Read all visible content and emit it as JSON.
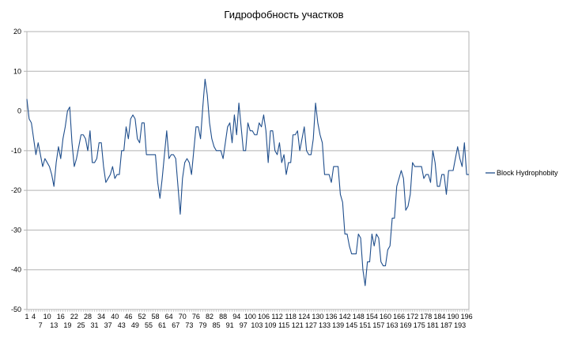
{
  "colors": {
    "series": "#1f4e8c",
    "grid": "#b3b3b3",
    "axis": "#b3b3b3",
    "background": "#ffffff"
  },
  "chart_data": {
    "type": "line",
    "title": "Гидрофобность участков",
    "xlabel": "",
    "ylabel": "",
    "ylim": [
      -50,
      20
    ],
    "yticks": [
      20,
      10,
      0,
      -10,
      -20,
      -30,
      -40,
      -50
    ],
    "xlim": [
      1,
      197
    ],
    "x_tick_labels_row1": [
      "1",
      "4",
      "10",
      "16",
      "22",
      "28",
      "34",
      "40",
      "46",
      "52",
      "58",
      "64",
      "70",
      "76",
      "82",
      "88",
      "94",
      "100",
      "106",
      "112",
      "118",
      "124",
      "130",
      "136",
      "142",
      "148",
      "154",
      "160",
      "166",
      "172",
      "178",
      "184",
      "190",
      "196"
    ],
    "x_tick_labels_row2": [
      "7",
      "13",
      "19",
      "25",
      "31",
      "37",
      "43",
      "49",
      "55",
      "61",
      "67",
      "73",
      "79",
      "85",
      "91",
      "97",
      "103",
      "109",
      "115",
      "121",
      "127",
      "133",
      "139",
      "145",
      "151",
      "157",
      "163",
      "169",
      "175",
      "181",
      "187",
      "193"
    ],
    "grid": "horizontal",
    "legend": "right",
    "series": [
      {
        "name": "Block Hydrophobity",
        "values": [
          3,
          -2,
          -3,
          -7,
          -11,
          -8,
          -11,
          -14,
          -12,
          -13,
          -14,
          -16,
          -19,
          -13,
          -9,
          -12,
          -7,
          -4,
          0,
          1,
          -8,
          -14,
          -12,
          -9,
          -6,
          -6,
          -7,
          -10,
          -5,
          -13,
          -13,
          -12,
          -8,
          -8,
          -14,
          -18,
          -17,
          -16,
          -14,
          -17,
          -16,
          -16,
          -10,
          -10,
          -4,
          -7,
          -2,
          -1,
          -2,
          -7,
          -8,
          -3,
          -3,
          -11,
          -11,
          -11,
          -11,
          -11,
          -18,
          -22,
          -17,
          -11,
          -5,
          -12,
          -11,
          -11,
          -12,
          -19,
          -26,
          -17,
          -13,
          -12,
          -13,
          -16,
          -10,
          -4,
          -4,
          -7,
          1,
          8,
          4,
          -3,
          -7,
          -9,
          -10,
          -10,
          -10,
          -12,
          -8,
          -4,
          -3,
          -8,
          -1,
          -6,
          2,
          -4,
          -10,
          -10,
          -3,
          -5,
          -5,
          -6,
          -6,
          -3,
          -4,
          -1,
          -5,
          -13,
          -5,
          -5,
          -10,
          -11,
          -8,
          -13,
          -11,
          -16,
          -13,
          -13,
          -6,
          -6,
          -5,
          -10,
          -7,
          -4,
          -10,
          -11,
          -11,
          -7,
          2,
          -3,
          -6,
          -8,
          -16,
          -16,
          -16,
          -18,
          -14,
          -14,
          -14,
          -21,
          -23,
          -31,
          -31,
          -34,
          -36,
          -36,
          -36,
          -31,
          -32,
          -40,
          -44,
          -38,
          -38,
          -31,
          -34,
          -31,
          -32,
          -38,
          -39,
          -39,
          -35,
          -34,
          -27,
          -27,
          -19,
          -17,
          -15,
          -17,
          -25,
          -24,
          -21,
          -13,
          -14,
          -14,
          -14,
          -14,
          -17,
          -16,
          -16,
          -18,
          -10,
          -13,
          -19,
          -19,
          -16,
          -16,
          -21,
          -15,
          -15,
          -15,
          -12,
          -9,
          -12,
          -14,
          -8,
          -16,
          -16
        ]
      }
    ]
  }
}
